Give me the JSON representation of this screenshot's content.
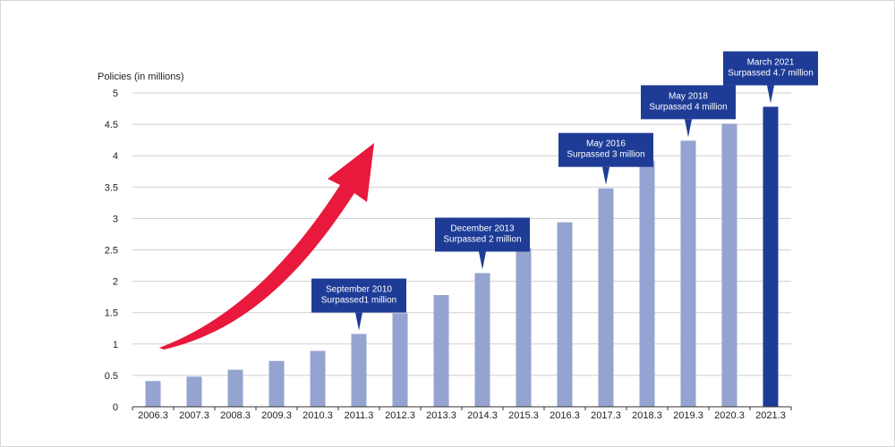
{
  "chart_data": {
    "type": "bar",
    "ylabel": "Policies (in millions)",
    "ylim": [
      0,
      5
    ],
    "yticks": [
      "0",
      "0.5",
      "1",
      "1.5",
      "2",
      "2.5",
      "3",
      "3.5",
      "4",
      "4.5",
      "5"
    ],
    "grid": true,
    "categories": [
      "2006.3",
      "2007.3",
      "2008.3",
      "2009.3",
      "2010.3",
      "2011.3",
      "2012.3",
      "2013.3",
      "2014.3",
      "2015.3",
      "2016.3",
      "2017.3",
      "2018.3",
      "2019.3",
      "2020.3",
      "2021.3"
    ],
    "values": [
      0.41,
      0.48,
      0.59,
      0.73,
      0.89,
      1.16,
      1.49,
      1.78,
      2.13,
      2.53,
      2.94,
      3.48,
      3.92,
      4.24,
      4.51,
      4.78
    ],
    "highlight_index": 15,
    "colors": {
      "bar": "#94a3cf",
      "highlight_bar": "#1e3c96",
      "callout": "#1e3c96",
      "arrow": "#e8193c",
      "grid": "#cfcfcf"
    },
    "annotations": [
      {
        "index": 5,
        "lines": [
          "September 2010",
          "Surpassed1 million"
        ]
      },
      {
        "index": 8,
        "lines": [
          "December 2013",
          "Surpassed 2 million"
        ]
      },
      {
        "index": 11,
        "lines": [
          "May 2016",
          "Surpassed 3 million"
        ]
      },
      {
        "index": 13,
        "lines": [
          "May 2018",
          "Surpassed 4 million"
        ]
      },
      {
        "index": 15,
        "lines": [
          "March 2021",
          "Surpassed 4.7 million"
        ]
      }
    ]
  }
}
